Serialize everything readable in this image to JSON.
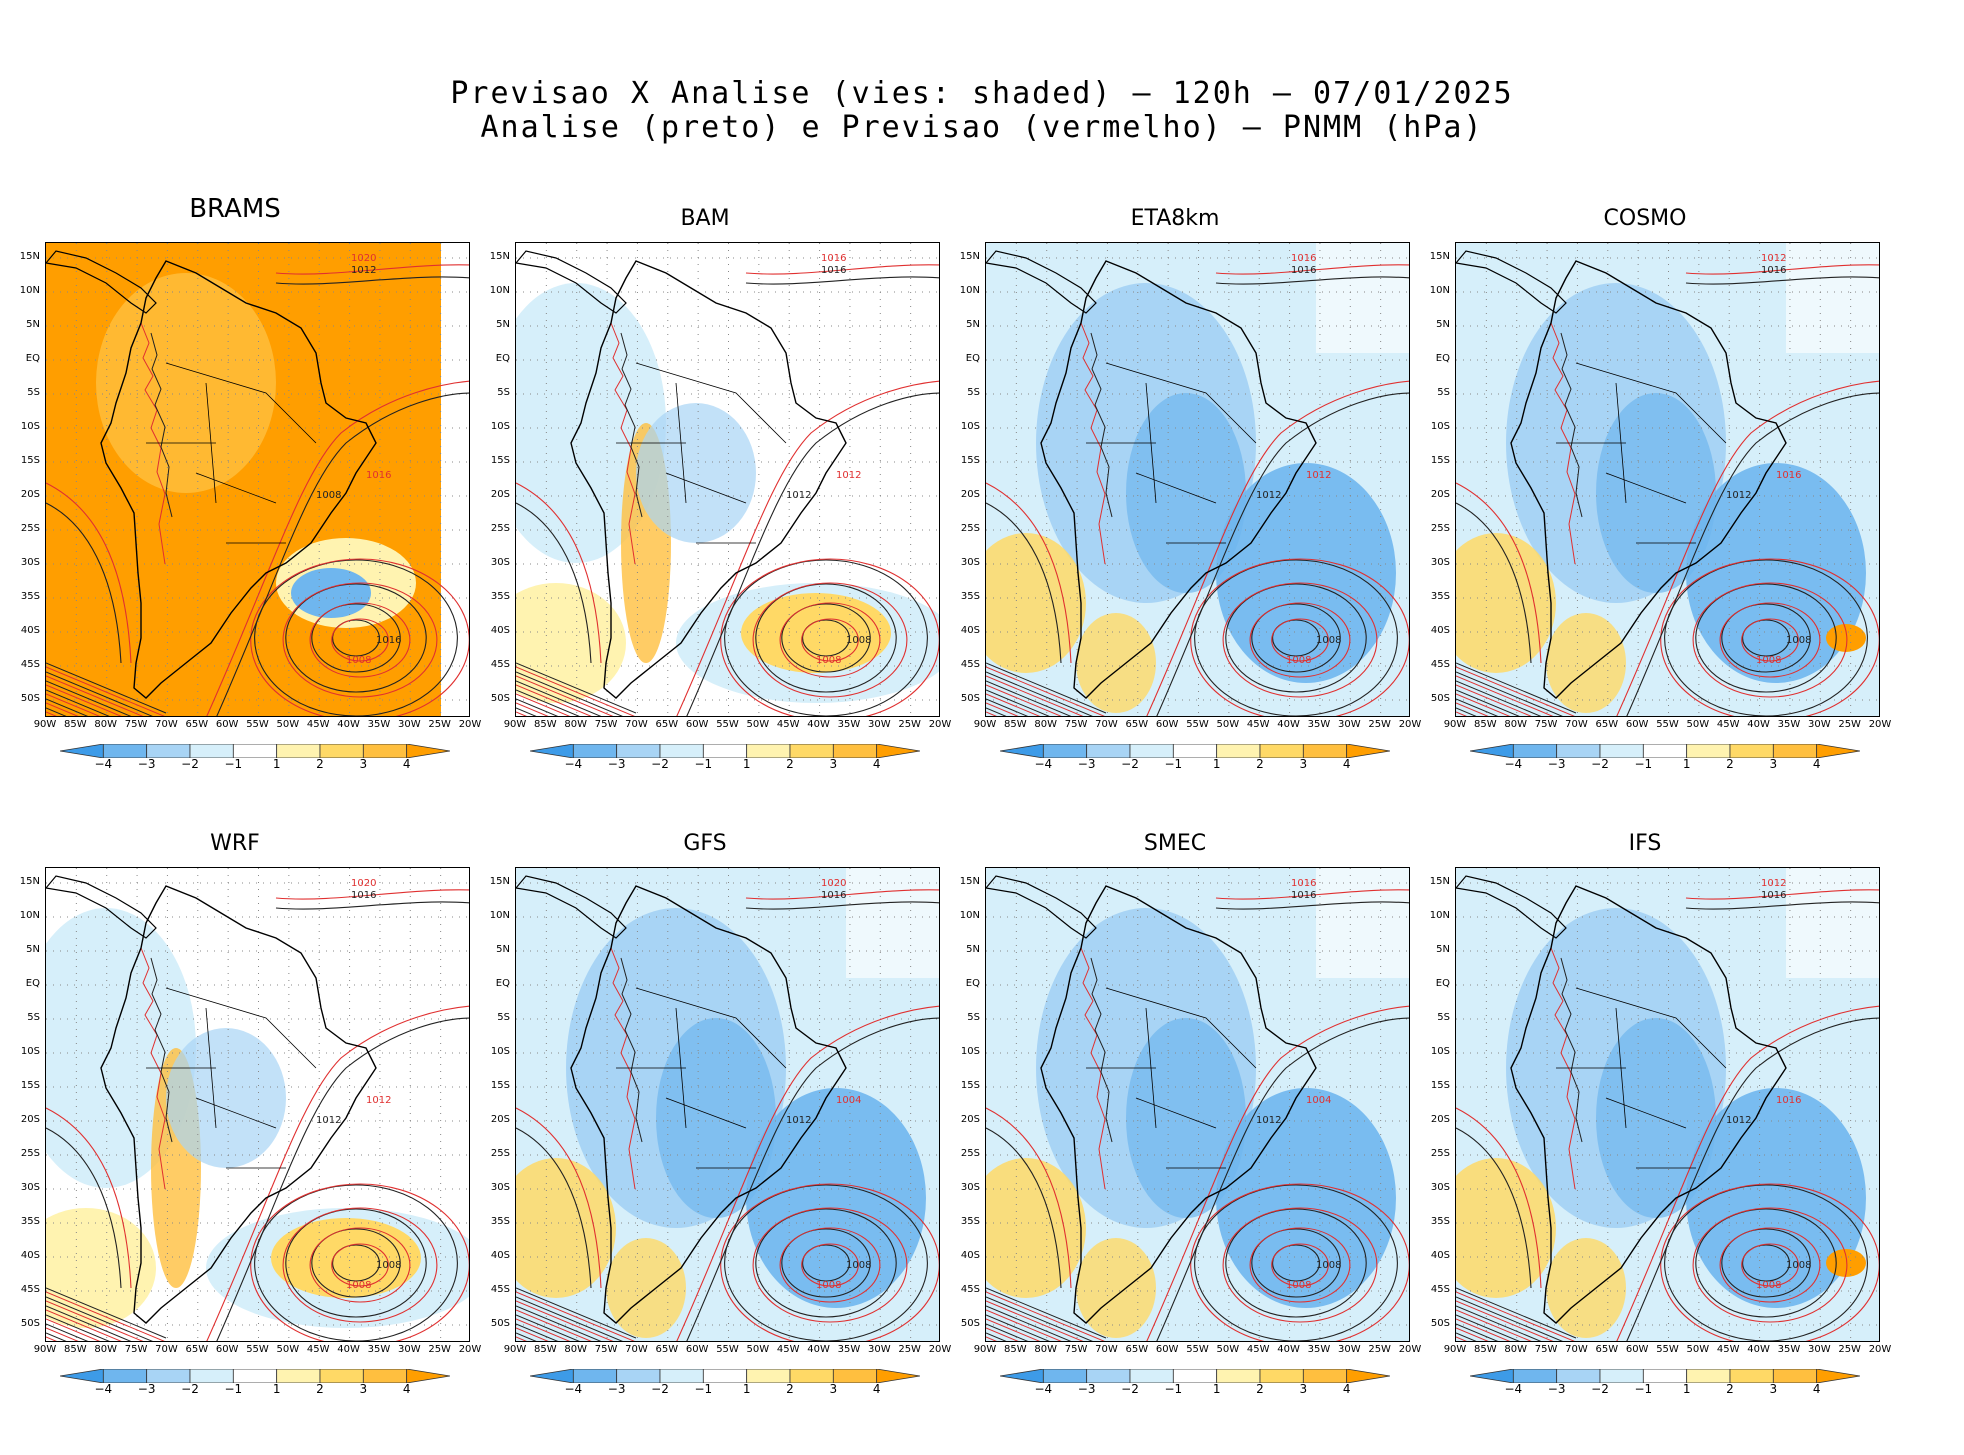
{
  "header": {
    "line1": "Previsao X Analise (vies: shaded) – 120h – 07/01/2025",
    "line2": "Analise (preto) e Previsao (vermelho) – PNMM (hPa)"
  },
  "y_ticks": [
    "15N",
    "10N",
    "5N",
    "EQ",
    "5S",
    "10S",
    "15S",
    "20S",
    "25S",
    "30S",
    "35S",
    "40S",
    "45S",
    "50S"
  ],
  "x_ticks": [
    "90W",
    "85W",
    "80W",
    "75W",
    "70W",
    "65W",
    "60W",
    "55W",
    "50W",
    "45W",
    "40W",
    "35W",
    "30W",
    "25W",
    "20W"
  ],
  "colorbar": {
    "labels": [
      "−4",
      "−3",
      "−2",
      "−1",
      "1",
      "2",
      "3",
      "4"
    ],
    "colors": [
      "#3d9be8",
      "#6fb6ee",
      "#a8d4f5",
      "#d6effa",
      "#ffffff",
      "#fff3b0",
      "#ffd966",
      "#ffbf3f",
      "#ff9e00"
    ]
  },
  "contour_colors": {
    "analysis": "#222222",
    "forecast": "#e03030"
  },
  "panels": [
    {
      "name": "BRAMS",
      "bias": "warm",
      "labels": {
        "a1": "1012",
        "a2": "1008",
        "a3": "1016",
        "f1": "1020",
        "f2": "1016",
        "f3": "1008"
      }
    },
    {
      "name": "BAM",
      "bias": "mixed",
      "labels": {
        "a1": "1016",
        "a2": "1012",
        "a3": "1008",
        "f1": "1016",
        "f2": "1012",
        "f3": "1008"
      }
    },
    {
      "name": "ETA8km",
      "bias": "cold",
      "labels": {
        "a1": "1016",
        "a2": "1012",
        "a3": "1008",
        "f1": "1016",
        "f2": "1012",
        "f3": "1008"
      }
    },
    {
      "name": "COSMO",
      "bias": "cold",
      "labels": {
        "a1": "1016",
        "a2": "1012",
        "a3": "1008",
        "f1": "1012",
        "f2": "1016",
        "f3": "1008"
      }
    },
    {
      "name": "WRF",
      "bias": "mixed",
      "labels": {
        "a1": "1016",
        "a2": "1012",
        "a3": "1008",
        "f1": "1020",
        "f2": "1012",
        "f3": "1008"
      }
    },
    {
      "name": "GFS",
      "bias": "cold",
      "labels": {
        "a1": "1016",
        "a2": "1012",
        "a3": "1008",
        "f1": "1020",
        "f2": "1004",
        "f3": "1008"
      }
    },
    {
      "name": "SMEC",
      "bias": "cold",
      "labels": {
        "a1": "1016",
        "a2": "1012",
        "a3": "1008",
        "f1": "1016",
        "f2": "1004",
        "f3": "1008"
      }
    },
    {
      "name": "IFS",
      "bias": "cold",
      "labels": {
        "a1": "1016",
        "a2": "1012",
        "a3": "1008",
        "f1": "1012",
        "f2": "1016",
        "f3": "1008"
      }
    }
  ]
}
